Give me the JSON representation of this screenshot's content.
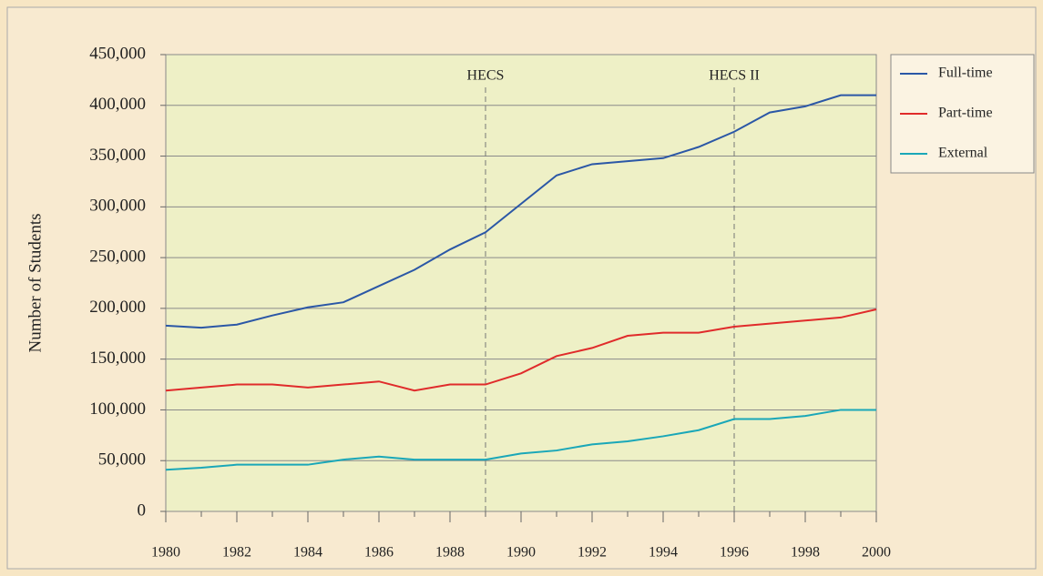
{
  "chart_data": {
    "type": "line",
    "y_label": "Number of Students",
    "x": [
      1980,
      1981,
      1982,
      1983,
      1984,
      1985,
      1986,
      1987,
      1988,
      1989,
      1990,
      1991,
      1992,
      1993,
      1994,
      1995,
      1996,
      1997,
      1998,
      1999,
      2000
    ],
    "series": [
      {
        "name": "Full-time",
        "color": "#2b57a6",
        "values": [
          183000,
          181000,
          184000,
          193000,
          201000,
          206000,
          222000,
          238000,
          258000,
          275000,
          303000,
          331000,
          342000,
          345000,
          348000,
          359000,
          374000,
          393000,
          399000,
          410000,
          410000
        ]
      },
      {
        "name": "Part-time",
        "color": "#e02b2b",
        "values": [
          119000,
          122000,
          125000,
          125000,
          122000,
          125000,
          128000,
          119000,
          125000,
          125000,
          136000,
          153000,
          161000,
          173000,
          176000,
          176000,
          182000,
          185000,
          188000,
          191000,
          199000
        ]
      },
      {
        "name": "External",
        "color": "#1aa7b8",
        "values": [
          41000,
          43000,
          46000,
          46000,
          46000,
          51000,
          54000,
          51000,
          51000,
          51000,
          57000,
          60000,
          66000,
          69000,
          74000,
          80000,
          91000,
          91000,
          94000,
          100000,
          100000
        ]
      }
    ],
    "annotations": [
      {
        "text": "HECS",
        "x": 1989
      },
      {
        "text": "HECS II",
        "x": 1996
      }
    ],
    "xlim": [
      1980,
      2000
    ],
    "xticks": [
      1980,
      1982,
      1984,
      1986,
      1988,
      1990,
      1992,
      1994,
      1996,
      1998,
      2000
    ],
    "ylim": [
      0,
      450000
    ],
    "yticks": [
      0,
      {
        "value": 50000,
        "label": "50,000"
      },
      {
        "value": 100000,
        "label": "100,000"
      },
      {
        "value": 150000,
        "label": "150,000"
      },
      {
        "value": 200000,
        "label": "200,000"
      },
      {
        "value": 250000,
        "label": "250,000"
      },
      {
        "value": 300000,
        "label": "300,000"
      },
      {
        "value": 350000,
        "label": "350,000"
      },
      {
        "value": 400000,
        "label": "400,000"
      },
      {
        "value": 450000,
        "label": "450,000"
      }
    ],
    "grid": true,
    "legend": "right"
  }
}
